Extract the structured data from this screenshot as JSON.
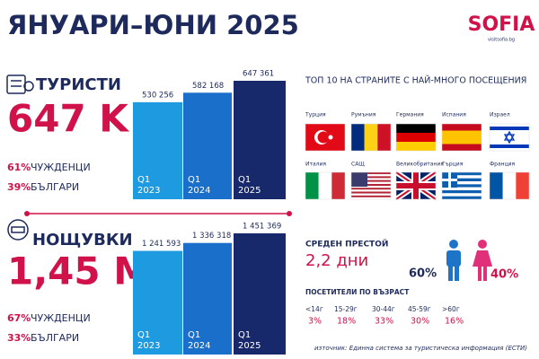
{
  "header": {
    "title": "ЯНУАРИ–ЮНИ 2025",
    "logo": "SOFIA",
    "logo_url": "visitsofia.bg"
  },
  "chart_data": [
    {
      "type": "bar",
      "title": "ТУРИСТИ",
      "categories": [
        "Q1\n2023",
        "Q1\n2024",
        "Q1\n2025"
      ],
      "values": [
        530256,
        582168,
        647361
      ],
      "value_labels": [
        "530 256",
        "582 168",
        "647 361"
      ],
      "colors": [
        "#1e9be0",
        "#1a6fcb",
        "#17296b"
      ]
    },
    {
      "type": "bar",
      "title": "НОЩУВКИ",
      "categories": [
        "Q1\n2023",
        "Q1\n2024",
        "Q1\n2025"
      ],
      "values": [
        1241593,
        1336318,
        1451369
      ],
      "value_labels": [
        "1 241 593",
        "1 336 318",
        "1 451 369"
      ],
      "colors": [
        "#1e9be0",
        "#1a6fcb",
        "#17296b"
      ]
    }
  ],
  "tourists": {
    "total": "647 K",
    "shares": [
      {
        "pct": "61%",
        "label": "ЧУЖДЕНЦИ"
      },
      {
        "pct": "39%",
        "label": "БЪЛГАРИ"
      }
    ]
  },
  "nights": {
    "total": "1,45 M",
    "shares": [
      {
        "pct": "67%",
        "label": "ЧУЖДЕНЦИ"
      },
      {
        "pct": "33%",
        "label": "БЪЛГАРИ"
      }
    ]
  },
  "top_countries": {
    "title": "ТОП 10 НА СТРАНИТЕ С НАЙ-МНОГО ПОСЕЩЕНИЯ",
    "countries": [
      "Турция",
      "Румъния",
      "Германия",
      "Испания",
      "Израел",
      "Италия",
      "САЩ",
      "Великобритания",
      "Гърция",
      "Франция"
    ]
  },
  "stay": {
    "label": "СРЕДЕН ПРЕСТОЙ",
    "value": "2,2 дни"
  },
  "gender": {
    "male": "60%",
    "female": "40%"
  },
  "age": {
    "title": "ПОСЕТИТЕЛИ ПО ВЪЗРАСТ",
    "groups": [
      "<14г",
      "15-29г",
      "30-44г",
      "45-59г",
      ">60г"
    ],
    "shares": [
      "3%",
      "18%",
      "33%",
      "30%",
      "16%"
    ]
  },
  "source": "източник: Единна система за туристическа информация (ЕСТИ)"
}
